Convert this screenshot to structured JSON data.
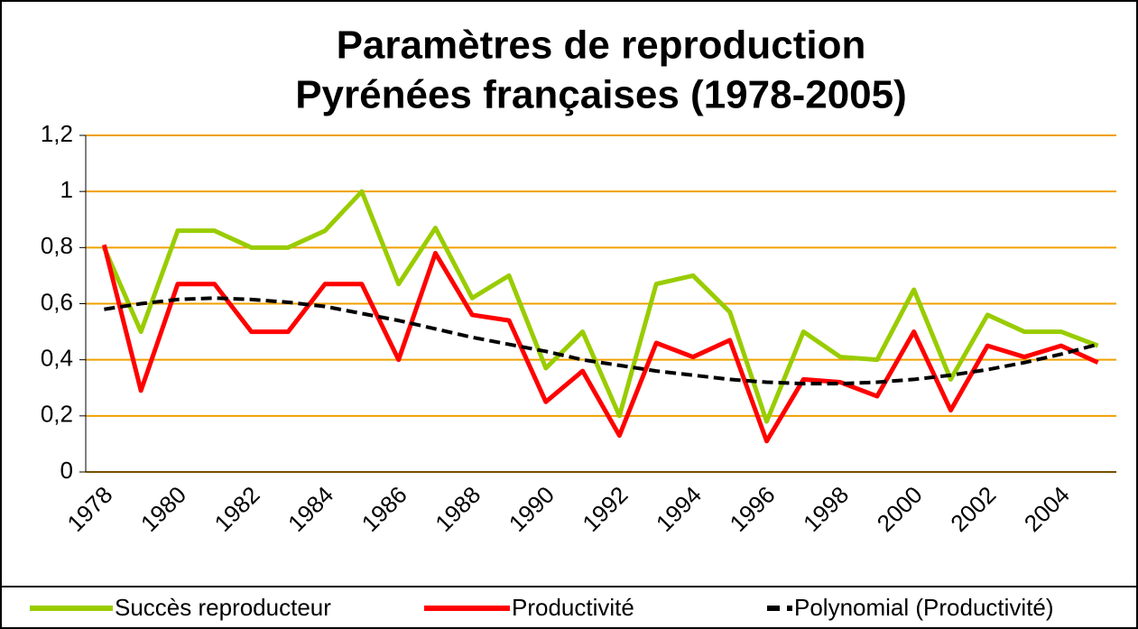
{
  "chart_data": {
    "type": "line",
    "title": [
      "Paramètres de reproduction",
      "Pyrénées françaises (1978-2005)"
    ],
    "categories": [
      "1978",
      null,
      "1980",
      null,
      "1982",
      null,
      "1984",
      null,
      "1986",
      null,
      "1988",
      null,
      "1990",
      null,
      "1992",
      null,
      "1994",
      null,
      "1996",
      null,
      "1998",
      null,
      "2000",
      null,
      "2002",
      null,
      "2004",
      null
    ],
    "series": [
      {
        "name": "Succès reproducteur",
        "color": "#99cc00",
        "style": "solid",
        "values": [
          0.8,
          0.5,
          0.86,
          0.86,
          0.8,
          0.8,
          0.86,
          1.0,
          0.67,
          0.87,
          0.62,
          0.7,
          0.37,
          0.5,
          0.2,
          0.67,
          0.7,
          0.57,
          0.18,
          0.5,
          0.41,
          0.4,
          0.65,
          0.33,
          0.56,
          0.5,
          0.5,
          0.45
        ]
      },
      {
        "name": "Productivité",
        "color": "#ff0000",
        "style": "solid",
        "values": [
          0.81,
          0.29,
          0.67,
          0.67,
          0.5,
          0.5,
          0.67,
          0.67,
          0.4,
          0.78,
          0.56,
          0.54,
          0.25,
          0.36,
          0.13,
          0.46,
          0.41,
          0.47,
          0.11,
          0.33,
          0.32,
          0.27,
          0.5,
          0.22,
          0.45,
          0.41,
          0.45,
          0.39
        ]
      },
      {
        "name": "Polynomial (Productivité)",
        "color": "#000000",
        "style": "dashed",
        "values": [
          0.58,
          0.6,
          0.615,
          0.62,
          0.615,
          0.605,
          0.59,
          0.565,
          0.54,
          0.51,
          0.48,
          0.455,
          0.43,
          0.4,
          0.38,
          0.36,
          0.345,
          0.33,
          0.32,
          0.315,
          0.315,
          0.32,
          0.33,
          0.345,
          0.365,
          0.39,
          0.42,
          0.455
        ]
      }
    ],
    "ylim": [
      0,
      1.2
    ],
    "yticks": [
      0,
      {
        "value": 0.2,
        "label": "0,2"
      },
      {
        "value": 0.4,
        "label": "0,4"
      },
      {
        "value": 0.6,
        "label": "0,6"
      },
      {
        "value": 0.8,
        "label": "0,8"
      },
      1,
      {
        "value": 1.2,
        "label": "1,2"
      }
    ],
    "grid": true,
    "grid_color": "#f0a000",
    "legend": "bottom"
  }
}
